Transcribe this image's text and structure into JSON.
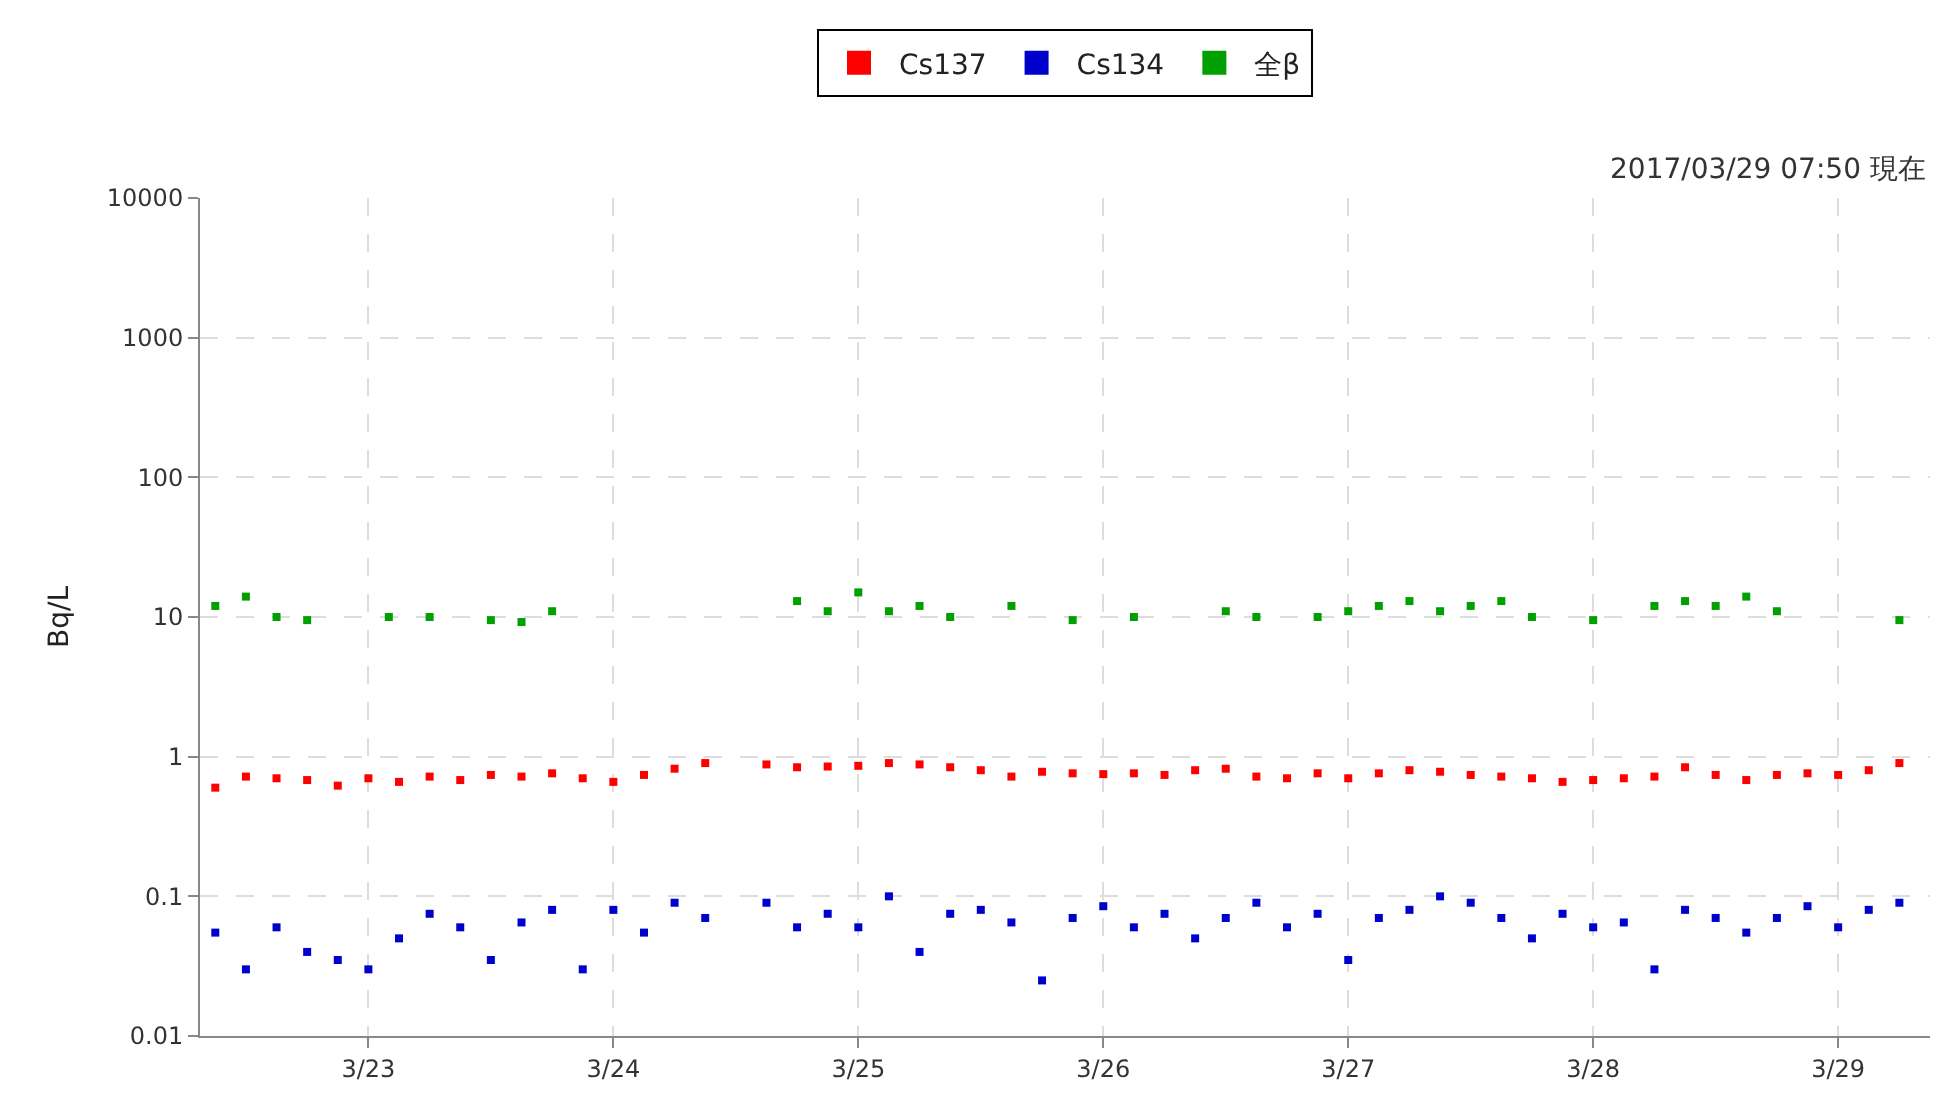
{
  "chart_data": {
    "type": "scatter",
    "ylabel": "Bq/L",
    "log": "y",
    "grid": true,
    "legend": "top",
    "marker": "square",
    "annotations": [
      "2017/03/29 07:50 現在"
    ],
    "xlim": [
      "2017-03-22T07:30",
      "2017-03-29T09:00"
    ],
    "xticks": [
      {
        "value": "2017-03-23",
        "label": "3/23"
      },
      {
        "value": "2017-03-24",
        "label": "3/24"
      },
      {
        "value": "2017-03-25",
        "label": "3/25"
      },
      {
        "value": "2017-03-26",
        "label": "3/26"
      },
      {
        "value": "2017-03-27",
        "label": "3/27"
      },
      {
        "value": "2017-03-28",
        "label": "3/28"
      },
      {
        "value": "2017-03-29",
        "label": "3/29"
      }
    ],
    "ylim": [
      0.01,
      10000
    ],
    "yticks": [
      0.01,
      0.1,
      1,
      10,
      100,
      1000,
      10000
    ],
    "x": [
      "2017-03-22T09:00",
      "2017-03-22T12:00",
      "2017-03-22T15:00",
      "2017-03-22T18:00",
      "2017-03-22T21:00",
      "2017-03-23T00:00",
      "2017-03-23T03:00",
      "2017-03-23T06:00",
      "2017-03-23T09:00",
      "2017-03-23T12:00",
      "2017-03-23T15:00",
      "2017-03-23T18:00",
      "2017-03-23T21:00",
      "2017-03-24T00:00",
      "2017-03-24T03:00",
      "2017-03-24T06:00",
      "2017-03-24T09:00",
      "2017-03-24T15:00",
      "2017-03-24T18:00",
      "2017-03-24T21:00",
      "2017-03-25T00:00",
      "2017-03-25T03:00",
      "2017-03-25T06:00",
      "2017-03-25T09:00",
      "2017-03-25T12:00",
      "2017-03-25T15:00",
      "2017-03-25T18:00",
      "2017-03-25T21:00",
      "2017-03-26T00:00",
      "2017-03-26T03:00",
      "2017-03-26T06:00",
      "2017-03-26T09:00",
      "2017-03-26T12:00",
      "2017-03-26T15:00",
      "2017-03-26T18:00",
      "2017-03-26T21:00",
      "2017-03-27T00:00",
      "2017-03-27T03:00",
      "2017-03-27T06:00",
      "2017-03-27T09:00",
      "2017-03-27T12:00",
      "2017-03-27T15:00",
      "2017-03-27T18:00",
      "2017-03-27T21:00",
      "2017-03-28T00:00",
      "2017-03-28T03:00",
      "2017-03-28T06:00",
      "2017-03-28T09:00",
      "2017-03-28T12:00",
      "2017-03-28T15:00",
      "2017-03-28T18:00",
      "2017-03-28T21:00",
      "2017-03-29T00:00",
      "2017-03-29T03:00",
      "2017-03-29T06:00"
    ],
    "series": [
      {
        "name": "Cs137",
        "color": "#ff0000",
        "values": [
          0.6,
          0.72,
          0.7,
          0.68,
          0.62,
          0.7,
          0.66,
          0.72,
          0.68,
          0.74,
          0.72,
          0.76,
          0.7,
          0.66,
          0.74,
          0.82,
          0.9,
          0.88,
          0.84,
          0.85,
          0.86,
          0.9,
          0.88,
          0.84,
          0.8,
          0.72,
          0.78,
          0.76,
          0.75,
          0.76,
          0.74,
          0.8,
          0.82,
          0.72,
          0.7,
          0.76,
          0.7,
          0.76,
          0.8,
          0.78,
          0.74,
          0.72,
          0.7,
          0.66,
          0.68,
          0.7,
          0.72,
          0.84,
          0.74,
          0.68,
          0.74,
          0.76,
          0.74,
          0.8,
          0.9
        ]
      },
      {
        "name": "Cs134",
        "color": "#0000cc",
        "values": [
          0.055,
          0.03,
          0.06,
          0.04,
          0.035,
          0.03,
          0.05,
          0.075,
          0.06,
          0.035,
          0.065,
          0.08,
          0.03,
          0.08,
          0.055,
          0.09,
          0.07,
          0.09,
          0.06,
          0.075,
          0.06,
          0.1,
          0.04,
          0.075,
          0.08,
          0.065,
          0.025,
          0.07,
          0.085,
          0.06,
          0.075,
          0.05,
          0.07,
          0.09,
          0.06,
          0.075,
          0.035,
          0.07,
          0.08,
          0.1,
          0.09,
          0.07,
          0.05,
          0.075,
          0.06,
          0.065,
          0.03,
          0.08,
          0.07,
          0.055,
          0.07,
          0.085,
          0.06,
          0.08,
          0.09
        ]
      },
      {
        "name": "全β",
        "color": "#00a000",
        "x": [
          "2017-03-22T09:00",
          "2017-03-22T12:00",
          "2017-03-22T15:00",
          "2017-03-22T18:00",
          "2017-03-23T02:00",
          "2017-03-23T06:00",
          "2017-03-23T12:00",
          "2017-03-23T15:00",
          "2017-03-23T18:00",
          "2017-03-24T18:00",
          "2017-03-24T21:00",
          "2017-03-25T00:00",
          "2017-03-25T03:00",
          "2017-03-25T06:00",
          "2017-03-25T09:00",
          "2017-03-25T15:00",
          "2017-03-25T21:00",
          "2017-03-26T03:00",
          "2017-03-26T12:00",
          "2017-03-26T15:00",
          "2017-03-26T21:00",
          "2017-03-27T00:00",
          "2017-03-27T03:00",
          "2017-03-27T06:00",
          "2017-03-27T09:00",
          "2017-03-27T12:00",
          "2017-03-27T15:00",
          "2017-03-27T18:00",
          "2017-03-28T00:00",
          "2017-03-28T06:00",
          "2017-03-28T09:00",
          "2017-03-28T12:00",
          "2017-03-28T15:00",
          "2017-03-28T18:00",
          "2017-03-29T06:00"
        ],
        "values": [
          12,
          14,
          10,
          9.5,
          10,
          10,
          9.5,
          9.2,
          11,
          13,
          11,
          15,
          11,
          12,
          10,
          12,
          9.5,
          10,
          11,
          10,
          10,
          11,
          12,
          13,
          11,
          12,
          13,
          10,
          9.5,
          12,
          13,
          12,
          14,
          11,
          9.5
        ]
      }
    ]
  }
}
